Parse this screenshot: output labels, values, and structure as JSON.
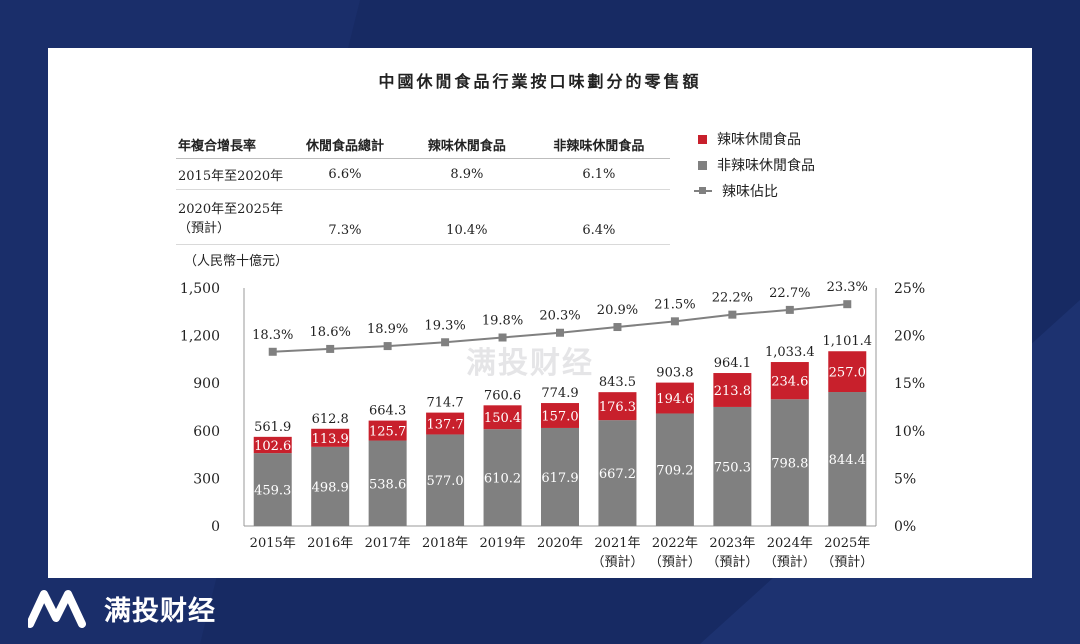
{
  "brand": {
    "name": "满投财经",
    "watermark": "满投财经"
  },
  "table": {
    "headers": [
      "年複合增長率",
      "休閒食品總計",
      "辣味休閒食品",
      "非辣味休閒食品"
    ],
    "rows": [
      {
        "label_line1": "2015年至2020年",
        "label_line2": "",
        "total": "6.6%",
        "spicy": "8.9%",
        "nonspicy": "6.1%"
      },
      {
        "label_line1": "2020年至2025年",
        "label_line2": "（預計）",
        "total": "7.3%",
        "spicy": "10.4%",
        "nonspicy": "6.4%"
      }
    ]
  },
  "colors": {
    "background": "#172a63",
    "spicy": "#c8202c",
    "nonspicy": "#808080",
    "line": "#808080"
  },
  "chart_data": {
    "type": "bar",
    "title": "中國休閒食品行業按口味劃分的零售額",
    "unit_label": "（人民幣十億元）",
    "categories": [
      [
        "2015年",
        ""
      ],
      [
        "2016年",
        ""
      ],
      [
        "2017年",
        ""
      ],
      [
        "2018年",
        ""
      ],
      [
        "2019年",
        ""
      ],
      [
        "2020年",
        ""
      ],
      [
        "2021年",
        "（預計）"
      ],
      [
        "2022年",
        "（預計）"
      ],
      [
        "2023年",
        "（預計）"
      ],
      [
        "2024年",
        "（預計）"
      ],
      [
        "2025年",
        "（預計）"
      ]
    ],
    "series": [
      {
        "name": "非辣味休閒食品",
        "values": [
          459.3,
          498.9,
          538.6,
          577.0,
          610.2,
          617.9,
          667.2,
          709.2,
          750.3,
          798.8,
          844.4
        ],
        "labels": [
          "459.3",
          "498.9",
          "538.6",
          "577.0",
          "610.2",
          "617.9",
          "667.2",
          "709.2",
          "750.3",
          "798.8",
          "844.4"
        ]
      },
      {
        "name": "辣味休閒食品",
        "values": [
          102.6,
          113.9,
          125.7,
          137.7,
          150.4,
          157.0,
          176.3,
          194.6,
          213.8,
          234.6,
          257.0
        ],
        "labels": [
          "102.6",
          "113.9",
          "125.7",
          "137.7",
          "150.4",
          "157.0",
          "176.3",
          "194.6",
          "213.8",
          "234.6",
          "257.0"
        ]
      }
    ],
    "totals": [
      "561.9",
      "612.8",
      "664.3",
      "714.7",
      "760.6",
      "774.9",
      "843.5",
      "903.8",
      "964.1",
      "1,033.4",
      "1,101.4"
    ],
    "line": {
      "name": "辣味佔比",
      "values": [
        18.3,
        18.6,
        18.9,
        19.3,
        19.8,
        20.3,
        20.9,
        21.5,
        22.2,
        22.7,
        23.3
      ],
      "labels": [
        "18.3%",
        "18.6%",
        "18.9%",
        "19.3%",
        "19.8%",
        "20.3%",
        "20.9%",
        "21.5%",
        "22.2%",
        "22.7%",
        "23.3%"
      ]
    },
    "left_axis": {
      "ylim": [
        0,
        1500
      ],
      "ticks": [
        "0",
        "300",
        "600",
        "900",
        "1,200",
        "1,500"
      ]
    },
    "right_axis": {
      "ylim": [
        0,
        25
      ],
      "ticks": [
        "0%",
        "5%",
        "10%",
        "15%",
        "20%",
        "25%"
      ]
    },
    "legend": [
      {
        "label": "辣味休閒食品"
      },
      {
        "label": "非辣味休閒食品"
      },
      {
        "label": "辣味佔比"
      }
    ]
  }
}
